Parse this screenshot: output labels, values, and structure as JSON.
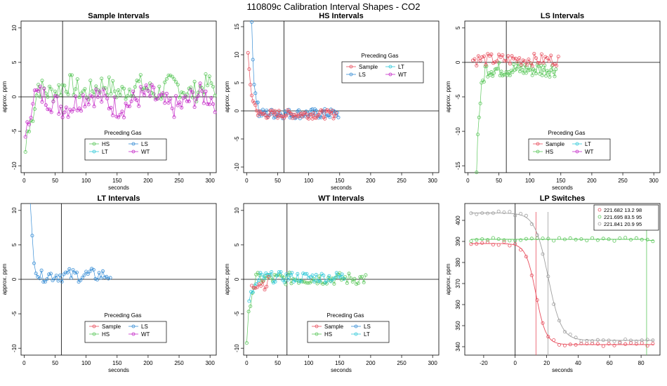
{
  "page": {
    "title": "110809c   Calibration Interval Shapes - CO2"
  },
  "colors": {
    "Sample": "#e8505f",
    "HS": "#5ec85e",
    "LS": "#3a8fd6",
    "LT": "#33c9d9",
    "WT": "#c62ec9",
    "lp1": "#e8505f",
    "lp2": "#5ec85e",
    "lp3": "#a0a0a0"
  },
  "chart_data": [
    {
      "type": "scatter",
      "title": "Sample Intervals",
      "xlabel": "seconds",
      "ylabel": "approx. ppm",
      "xlim": [
        -5,
        310
      ],
      "ylim": [
        -11,
        11
      ],
      "xticks": [
        0,
        50,
        100,
        150,
        200,
        250,
        300
      ],
      "yticks": [
        -10,
        -5,
        0,
        5,
        10
      ],
      "hline": [
        0
      ],
      "vline": [
        62
      ],
      "legend": {
        "title": "Preceding Gas",
        "entries": [
          "HS",
          "LS",
          "LT",
          "WT"
        ],
        "cols": 2,
        "position": "center-bottom"
      },
      "series": [
        {
          "name": "HS",
          "gen": "sample_hs",
          "x0": 2,
          "dx": 3,
          "n": 103
        },
        {
          "name": "WT",
          "gen": "sample_wt",
          "x0": 2,
          "dx": 3,
          "n": 103
        }
      ]
    },
    {
      "type": "scatter",
      "title": "HS Intervals",
      "xlabel": "seconds",
      "ylabel": "approx. ppm",
      "xlim": [
        -5,
        310
      ],
      "ylim": [
        -11,
        16
      ],
      "xticks": [
        0,
        50,
        100,
        150,
        200,
        250,
        300
      ],
      "yticks": [
        -10,
        -5,
        0,
        5,
        10,
        15
      ],
      "hline": [
        0
      ],
      "vline": [
        60
      ],
      "legend": {
        "title": "Preceding Gas",
        "entries": [
          "Sample",
          "LT",
          "LS",
          "WT"
        ],
        "cols": 2,
        "position": "top-center"
      },
      "series": [
        {
          "name": "LS",
          "gen": "hs_ls",
          "x0": 8,
          "dx": 2,
          "n": 71
        },
        {
          "name": "Sample",
          "gen": "hs_sample",
          "x0": 2,
          "dx": 2,
          "n": 72
        }
      ]
    },
    {
      "type": "scatter",
      "title": "LS Intervals",
      "xlabel": "seconds",
      "ylabel": "approx. ppm",
      "xlim": [
        -5,
        310
      ],
      "ylim": [
        -16,
        6
      ],
      "xticks": [
        0,
        50,
        100,
        150,
        200,
        250,
        300
      ],
      "yticks": [
        -15,
        -10,
        -5,
        0,
        5
      ],
      "hline": [
        0
      ],
      "vline": [
        62
      ],
      "legend": {
        "title": "Preceding Gas",
        "entries": [
          "Sample",
          "LT",
          "HS",
          "WT"
        ],
        "cols": 2,
        "position": "center-bottom"
      },
      "series": [
        {
          "name": "HS",
          "gen": "ls_hs",
          "x0": 14,
          "dx": 2,
          "n": 65
        },
        {
          "name": "Sample",
          "gen": "ls_sample",
          "x0": 8,
          "dx": 3,
          "n": 47
        }
      ]
    },
    {
      "type": "scatter",
      "title": "LT Intervals",
      "xlabel": "seconds",
      "ylabel": "approx. ppm",
      "xlim": [
        -5,
        310
      ],
      "ylim": [
        -11,
        11
      ],
      "xticks": [
        0,
        50,
        100,
        150,
        200,
        250,
        300
      ],
      "yticks": [
        -10,
        -5,
        0,
        5,
        10
      ],
      "hline": [
        0
      ],
      "vline": [
        60
      ],
      "legend": {
        "title": "Preceding Gas",
        "entries": [
          "Sample",
          "LS",
          "HS",
          "WT"
        ],
        "cols": 2,
        "position": "center-bottom"
      },
      "series": [
        {
          "name": "LS",
          "gen": "lt_ls",
          "x0": 10,
          "dx": 3,
          "n": 44
        }
      ]
    },
    {
      "type": "scatter",
      "title": "WT Intervals",
      "xlabel": "seconds",
      "ylabel": "approx. ppm",
      "xlim": [
        -5,
        310
      ],
      "ylim": [
        -11,
        11
      ],
      "xticks": [
        0,
        50,
        100,
        150,
        200,
        250,
        300
      ],
      "yticks": [
        -10,
        -5,
        0,
        5,
        10
      ],
      "hline": [
        0
      ],
      "vline": [
        65
      ],
      "legend": {
        "title": "Preceding Gas",
        "entries": [
          "Sample",
          "LS",
          "HS",
          "LT"
        ],
        "cols": 2,
        "position": "center-bottom"
      },
      "series": [
        {
          "name": "HS",
          "gen": "wt_hs",
          "x0": 0,
          "dx": 3,
          "n": 65
        },
        {
          "name": "LT",
          "gen": "wt_lt",
          "x0": 4,
          "dx": 3,
          "n": 52
        },
        {
          "name": "Sample",
          "gen": "wt_sample",
          "x0": 8,
          "dx": 3,
          "n": 10
        }
      ]
    },
    {
      "type": "line",
      "title": "LP Switches",
      "xlabel": "seconds",
      "ylabel": "approx. ppm",
      "xlim": [
        -32,
        92
      ],
      "ylim": [
        336,
        408
      ],
      "xticks": [
        -20,
        0,
        20,
        40,
        60,
        80
      ],
      "yticks": [
        340,
        350,
        360,
        370,
        380,
        390,
        400
      ],
      "vline": [
        0
      ],
      "vline_colored": [
        13.2,
        20.9,
        83.5
      ],
      "legend": {
        "entries": [
          "221.682 13.2 98",
          "221.695 83.5 95",
          "221.841 20.9 95"
        ],
        "position": "top-right"
      },
      "series": [
        {
          "name": "221.682 13.2 98",
          "from": 389,
          "to": 341,
          "t_half": 13.2,
          "width": 3.2,
          "x0": -28,
          "dx": 3.5,
          "n": 34
        },
        {
          "name": "221.695 83.5 95",
          "from": 391,
          "to": 390.5,
          "t_half": 83.5,
          "width": 0.5,
          "x0": -28,
          "dx": 3.5,
          "n": 34
        },
        {
          "name": "221.841 20.9 95",
          "from": 403.5,
          "to": 343,
          "t_half": 20.9,
          "width": 4.2,
          "x0": -28,
          "dx": 3.5,
          "n": 34
        }
      ]
    }
  ]
}
